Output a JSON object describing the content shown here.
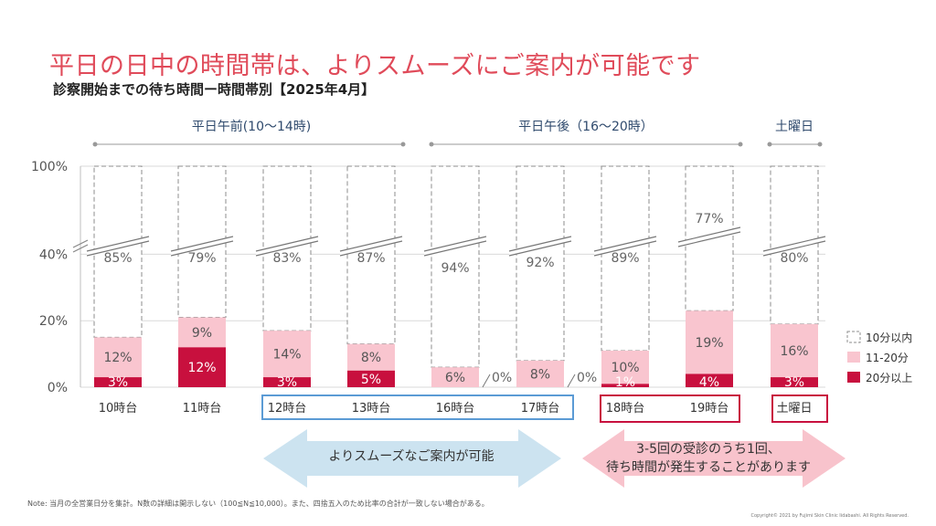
{
  "title": "平日の日中の時間帯は、よりスムーズにご案内が可能です",
  "subtitle": "診察開始までの待ち時間ー時間帯別【2025年4月】",
  "chart_data": {
    "type": "bar",
    "stacked": true,
    "title": "",
    "ylim": [
      0,
      100
    ],
    "y_axis_break": true,
    "y_tick_labels": [
      "0%",
      "20%",
      "40%",
      "100%"
    ],
    "grid": true,
    "legend_position": "right",
    "categories": [
      "10時台",
      "11時台",
      "12時台",
      "13時台",
      "16時台",
      "17時台",
      "18時台",
      "19時台",
      "土曜日"
    ],
    "series": [
      {
        "name": "20分以上",
        "color": "#c8103e",
        "values": [
          3,
          12,
          3,
          5,
          0,
          0,
          1,
          4,
          3
        ]
      },
      {
        "name": "11-20分",
        "color": "#f9c5cf",
        "values": [
          12,
          9,
          14,
          8,
          6,
          8,
          10,
          19,
          16
        ]
      },
      {
        "name": "10分以内",
        "color": "#ffffff",
        "values": [
          85,
          79,
          83,
          87,
          94,
          92,
          89,
          77,
          80
        ]
      }
    ],
    "value_labels": {
      "20分以上": [
        "3%",
        "12%",
        "3%",
        "5%",
        "0%",
        "0%",
        "1%",
        "4%",
        "3%"
      ],
      "11-20分": [
        "12%",
        "9%",
        "14%",
        "8%",
        "6%",
        "8%",
        "10%",
        "19%",
        "16%"
      ],
      "10分以内": [
        "85%",
        "79%",
        "83%",
        "87%",
        "94%",
        "92%",
        "89%",
        "77%",
        "80%"
      ]
    },
    "groups": [
      {
        "label": "平日午前(10～14時)"
      },
      {
        "label": "平日午後（16～20時）"
      },
      {
        "label": "土曜日"
      }
    ]
  },
  "arrows": {
    "left": {
      "text": "よりスムーズなご案内が可能",
      "color": "#cce3f0"
    },
    "right": {
      "line1": "3-5回の受診のうち1回、",
      "line2": "待ち時間が発生することがあります",
      "color": "#f8c3cc"
    }
  },
  "colors": {
    "accent": "#e04b5a",
    "blue_box": "#5b9bd5",
    "red_box": "#c8103e"
  },
  "note": "Note: 当月の全営業日分を集計。N数の詳細は開示しない（100≦N≦10,000）。また、四捨五入のため比率の合計が一致しない場合がある。",
  "copyright": "Copyright© 2021 by Fujimi Skin Clinic Iidabashi. All Rights Reserved."
}
